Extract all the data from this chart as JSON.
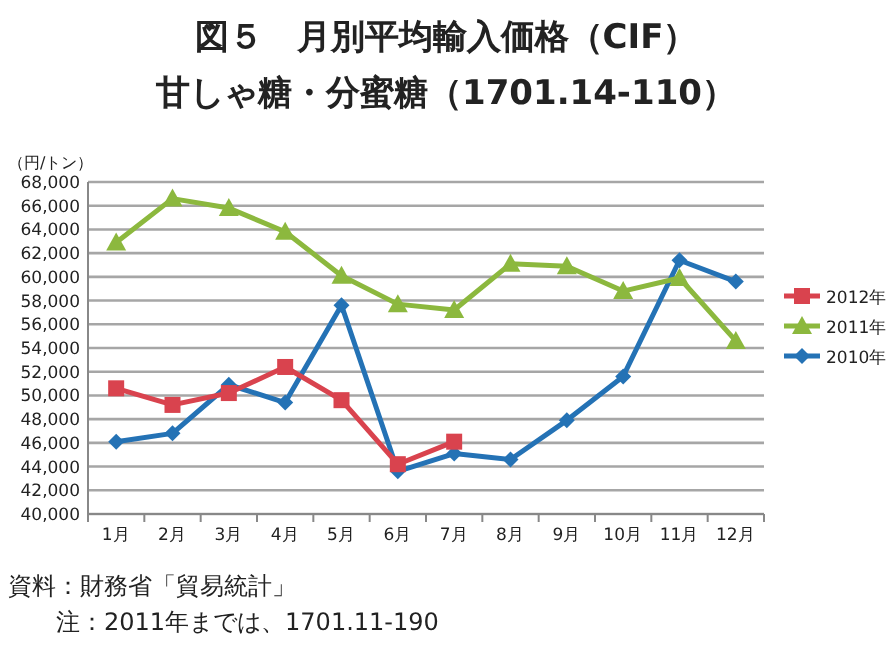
{
  "chart_data": {
    "type": "line",
    "title": "図５　月別平均輸入価格（CIF）",
    "subtitle": "甘しゃ糖・分蜜糖（1701.14-110）",
    "ylabel": "（円/トン）",
    "categories": [
      "1月",
      "2月",
      "3月",
      "4月",
      "5月",
      "6月",
      "7月",
      "8月",
      "9月",
      "10月",
      "11月",
      "12月"
    ],
    "ylim": [
      40000,
      68000
    ],
    "yticks": [
      {
        "value": 40000,
        "label": "40,000"
      },
      {
        "value": 42000,
        "label": "42,000"
      },
      {
        "value": 44000,
        "label": "44,000"
      },
      {
        "value": 46000,
        "label": "46,000"
      },
      {
        "value": 48000,
        "label": "48,000"
      },
      {
        "value": 50000,
        "label": "50,000"
      },
      {
        "value": 52000,
        "label": "52,000"
      },
      {
        "value": 54000,
        "label": "54,000"
      },
      {
        "value": 56000,
        "label": "56,000"
      },
      {
        "value": 58000,
        "label": "58,000"
      },
      {
        "value": 60000,
        "label": "60,000"
      },
      {
        "value": 62000,
        "label": "62,000"
      },
      {
        "value": 64000,
        "label": "64,000"
      },
      {
        "value": 66000,
        "label": "66,000"
      },
      {
        "value": 68000,
        "label": "68,000"
      }
    ],
    "grid": "y",
    "legend": "right",
    "series": [
      {
        "name": "2012年",
        "color": "#d9434e",
        "marker": "square",
        "values": [
          50600,
          49200,
          50200,
          52400,
          49600,
          44200,
          46100,
          null,
          null,
          null,
          null,
          null
        ]
      },
      {
        "name": "2011年",
        "color": "#8cb83e",
        "marker": "triangle",
        "values": [
          62900,
          66600,
          65800,
          63800,
          60100,
          57700,
          57200,
          61100,
          60900,
          58800,
          59900,
          54600
        ]
      },
      {
        "name": "2010年",
        "color": "#2472b5",
        "marker": "diamond",
        "values": [
          46100,
          46800,
          50900,
          49400,
          57600,
          43600,
          45100,
          44600,
          47900,
          51600,
          61400,
          59600
        ]
      }
    ],
    "annotations": [
      "資料：財務省「貿易統計」",
      "注：2011年までは、1701.11-190"
    ]
  }
}
